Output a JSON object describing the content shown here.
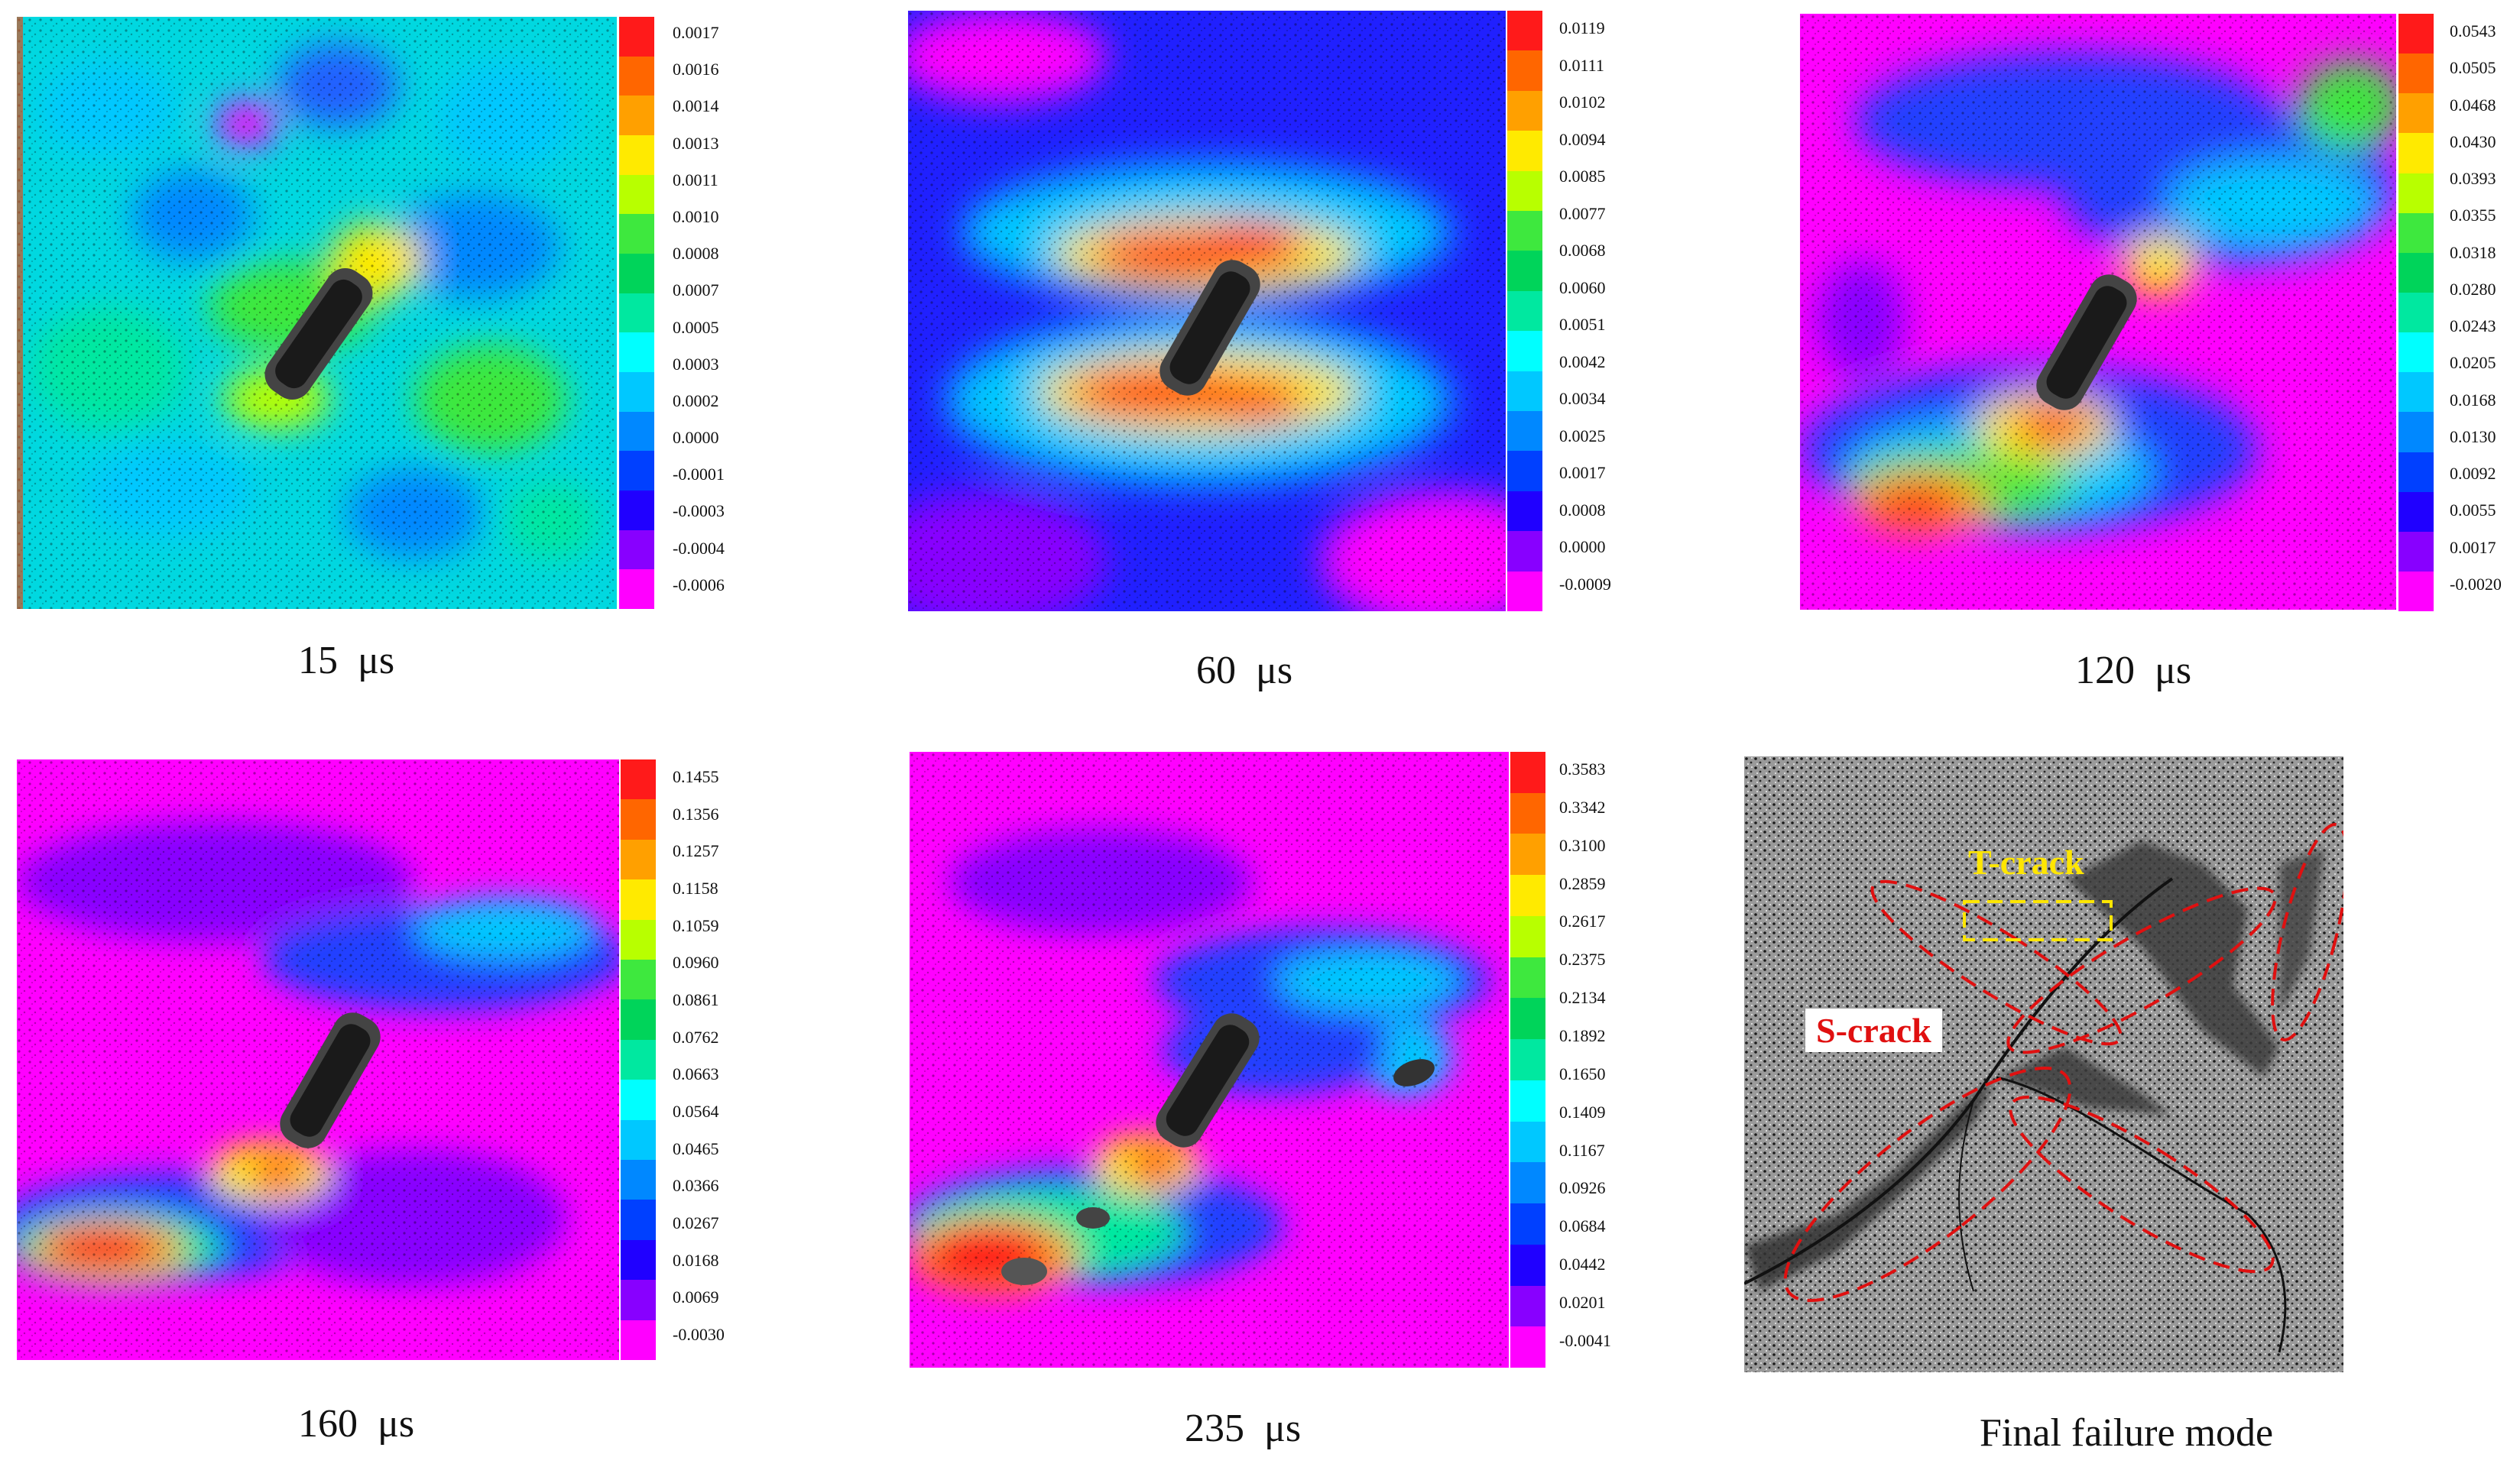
{
  "colormap": [
    "#ff1a1a",
    "#ff6600",
    "#ffa000",
    "#ffea00",
    "#b8ff00",
    "#3ee83e",
    "#00d45a",
    "#00e8a0",
    "#00ffff",
    "#00c8ff",
    "#0088ff",
    "#0040ff",
    "#2000ff",
    "#8800ff",
    "#ff00ff"
  ],
  "panels": [
    {
      "time": "15",
      "unit": "μs",
      "ticks": [
        "0.0017",
        "0.0016",
        "0.0014",
        "0.0013",
        "0.0011",
        "0.0010",
        "0.0008",
        "0.0007",
        "0.0005",
        "0.0003",
        "0.0002",
        "0.0000",
        "-0.0001",
        "-0.0003",
        "-0.0004",
        "-0.0006"
      ]
    },
    {
      "time": "60",
      "unit": "μs",
      "ticks": [
        "0.0119",
        "0.0111",
        "0.0102",
        "0.0094",
        "0.0085",
        "0.0077",
        "0.0068",
        "0.0060",
        "0.0051",
        "0.0042",
        "0.0034",
        "0.0025",
        "0.0017",
        "0.0008",
        "0.0000",
        "-0.0009"
      ]
    },
    {
      "time": "120",
      "unit": "μs",
      "ticks": [
        "0.0543",
        "0.0505",
        "0.0468",
        "0.0430",
        "0.0393",
        "0.0355",
        "0.0318",
        "0.0280",
        "0.0243",
        "0.0205",
        "0.0168",
        "0.0130",
        "0.0092",
        "0.0055",
        "0.0017",
        "-0.0020"
      ]
    },
    {
      "time": "160",
      "unit": "μs",
      "ticks": [
        "0.1455",
        "0.1356",
        "0.1257",
        "0.1158",
        "0.1059",
        "0.0960",
        "0.0861",
        "0.0762",
        "0.0663",
        "0.0564",
        "0.0465",
        "0.0366",
        "0.0267",
        "0.0168",
        "0.0069",
        "-0.0030"
      ]
    },
    {
      "time": "235",
      "unit": "μs",
      "ticks": [
        "0.3583",
        "0.3342",
        "0.3100",
        "0.2859",
        "0.2617",
        "0.2375",
        "0.2134",
        "0.1892",
        "0.1650",
        "0.1409",
        "0.1167",
        "0.0926",
        "0.0684",
        "0.0442",
        "0.0201",
        "-0.0041"
      ]
    }
  ],
  "final": {
    "caption": "Final failure mode",
    "t_crack": "T-crack",
    "s_crack": "S-crack"
  }
}
